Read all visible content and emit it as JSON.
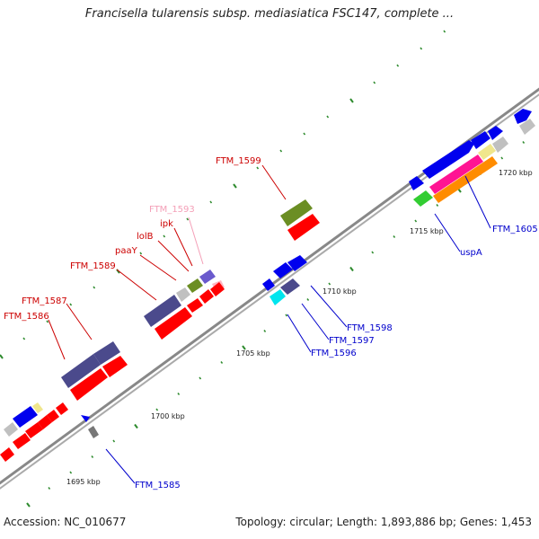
{
  "title": "Francisella tularensis subsp. mediasiatica FSC147, complete ...",
  "footer": {
    "accession": "Accession: NC_010677",
    "topology": "Topology: circular; Length: 1,893,886 bp; Genes: 1,453"
  },
  "scale_labels": [
    "1695 kbp",
    "1700 kbp",
    "1705 kbp",
    "1710 kbp",
    "1715 kbp",
    "1720 kbp"
  ],
  "gene_labels": [
    {
      "text": "FTM_1599",
      "color": "#cc0000"
    },
    {
      "text": "FTM_1593",
      "color": "#f4a0b8"
    },
    {
      "text": "ipk",
      "color": "#cc0000"
    },
    {
      "text": "lolB",
      "color": "#cc0000"
    },
    {
      "text": "paaY",
      "color": "#cc0000"
    },
    {
      "text": "FTM_1589",
      "color": "#cc0000"
    },
    {
      "text": "FTM_1587",
      "color": "#cc0000"
    },
    {
      "text": "FTM_1586",
      "color": "#cc0000"
    },
    {
      "text": "FTM_1605",
      "color": "#0000cc"
    },
    {
      "text": "uspA",
      "color": "#0000cc"
    },
    {
      "text": "FTM_1598",
      "color": "#0000cc"
    },
    {
      "text": "FTM_1597",
      "color": "#0000cc"
    },
    {
      "text": "FTM_1596",
      "color": "#0000cc"
    },
    {
      "text": "FTM_1585",
      "color": "#0000cc"
    }
  ],
  "colors": {
    "backbone": "#888888",
    "tick": "#2e8b2e",
    "cds_forward": "#ff0000",
    "cds_reverse": "#0000ee",
    "cog_purple": "#4b4a8c",
    "cog_olive": "#6b8e23",
    "cog_gray": "#c0c0c0",
    "cog_yellow": "#f0e68c",
    "cog_magenta": "#ff1493",
    "cog_orange": "#ff8c00",
    "cog_green": "#32cd32",
    "cog_cyan": "#00e5ee"
  }
}
